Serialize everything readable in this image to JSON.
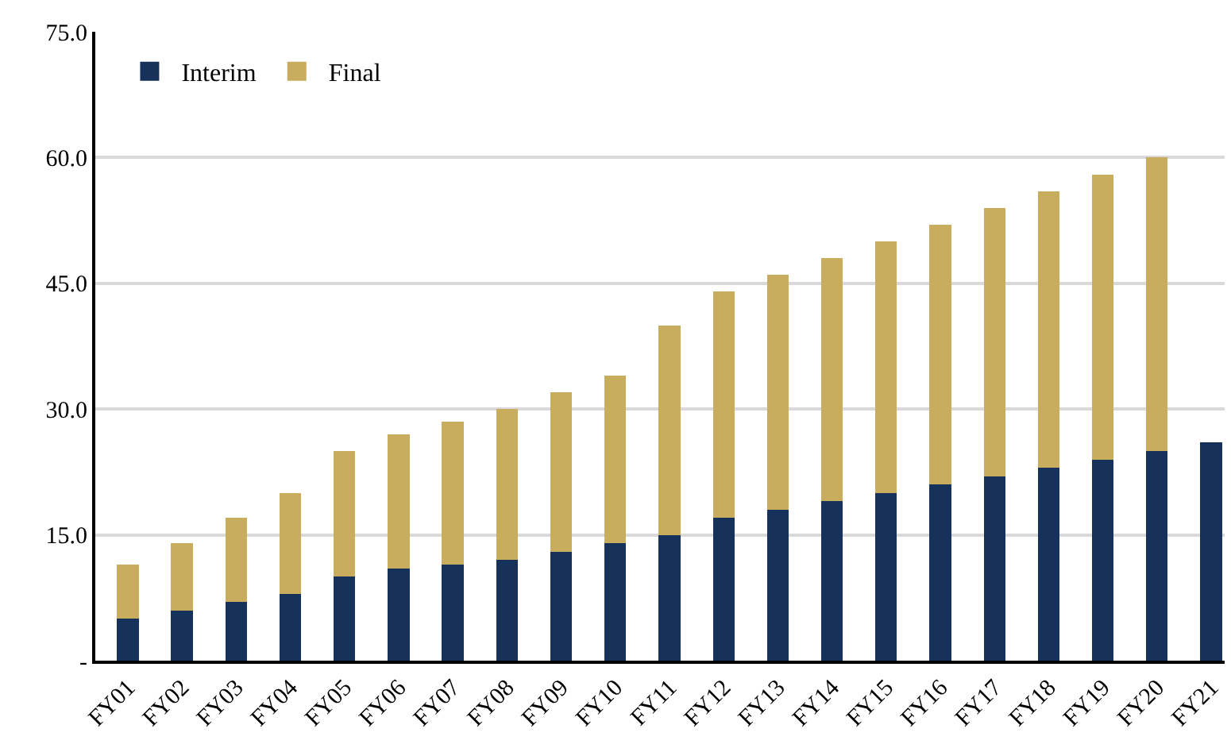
{
  "chart_data": {
    "type": "bar",
    "stacked": true,
    "categories": [
      "FY01",
      "FY02",
      "FY03",
      "FY04",
      "FY05",
      "FY06",
      "FY07",
      "FY08",
      "FY09",
      "FY10",
      "FY11",
      "FY12",
      "FY13",
      "FY14",
      "FY15",
      "FY16",
      "FY17",
      "FY18",
      "FY19",
      "FY20",
      "FY21"
    ],
    "series": [
      {
        "name": "Interim",
        "color": "#17325a",
        "values": [
          5,
          6,
          7,
          8,
          10,
          11,
          11.5,
          12,
          13,
          14,
          15,
          17,
          18,
          19,
          20,
          21,
          22,
          23,
          24,
          25,
          26
        ]
      },
      {
        "name": "Final",
        "color": "#c8ad5e",
        "values": [
          6.5,
          8,
          10,
          12,
          15,
          16,
          17,
          18,
          19,
          20,
          25,
          27,
          28,
          29,
          30,
          31,
          32,
          33,
          34,
          35,
          null
        ]
      }
    ],
    "ylim": [
      0,
      75
    ],
    "yticks": [
      {
        "value": 0,
        "label": "-"
      },
      {
        "value": 15,
        "label": "15.0"
      },
      {
        "value": 30,
        "label": "30.0"
      },
      {
        "value": 45,
        "label": "45.0"
      },
      {
        "value": 60,
        "label": "60.0"
      },
      {
        "value": 75,
        "label": "75.0"
      }
    ],
    "grid": "y",
    "legend": "top left"
  }
}
